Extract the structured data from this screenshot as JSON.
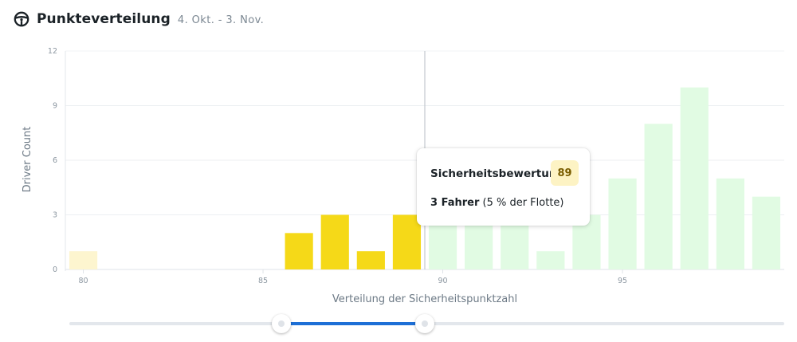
{
  "header": {
    "icon": "steering-wheel-icon",
    "title": "Punkteverteilung",
    "date_range": "4. Okt. - 3. Nov."
  },
  "chart_data": {
    "type": "bar",
    "xlabel": "Verteilung der Sicherheitspunktzahl",
    "ylabel": "Driver Count",
    "xlim": [
      79.5,
      99.5
    ],
    "ylim": [
      0,
      12
    ],
    "x_ticks": [
      80,
      85,
      90,
      95
    ],
    "y_ticks": [
      0,
      3,
      6,
      9,
      12
    ],
    "grid": true,
    "highlight_line_x": 89.5,
    "bars": [
      {
        "x": 80,
        "value": 1,
        "color": "#fdf5cf"
      },
      {
        "x": 86,
        "value": 2,
        "color": "#f5d918"
      },
      {
        "x": 87,
        "value": 3,
        "color": "#f5d918"
      },
      {
        "x": 88,
        "value": 1,
        "color": "#f5d918"
      },
      {
        "x": 89,
        "value": 3,
        "color": "#f5d918"
      },
      {
        "x": 90,
        "value": 3,
        "color": "#e1fbe3"
      },
      {
        "x": 91,
        "value": 3,
        "color": "#e1fbe3"
      },
      {
        "x": 92,
        "value": 3,
        "color": "#e1fbe3"
      },
      {
        "x": 93,
        "value": 1,
        "color": "#e1fbe3"
      },
      {
        "x": 94,
        "value": 3,
        "color": "#e1fbe3"
      },
      {
        "x": 95,
        "value": 5,
        "color": "#e1fbe3"
      },
      {
        "x": 96,
        "value": 8,
        "color": "#e1fbe3"
      },
      {
        "x": 97,
        "value": 10,
        "color": "#e1fbe3"
      },
      {
        "x": 98,
        "value": 5,
        "color": "#e1fbe3"
      },
      {
        "x": 99,
        "value": 4,
        "color": "#e1fbe3"
      }
    ]
  },
  "tooltip": {
    "label": "Sicherheitsbewertung",
    "score": "89",
    "count": "3 Fahrer",
    "share": "(5 % der Flotte)"
  },
  "slider": {
    "range": [
      85.5,
      89.5
    ],
    "fill_color": "#1d6fd6"
  }
}
